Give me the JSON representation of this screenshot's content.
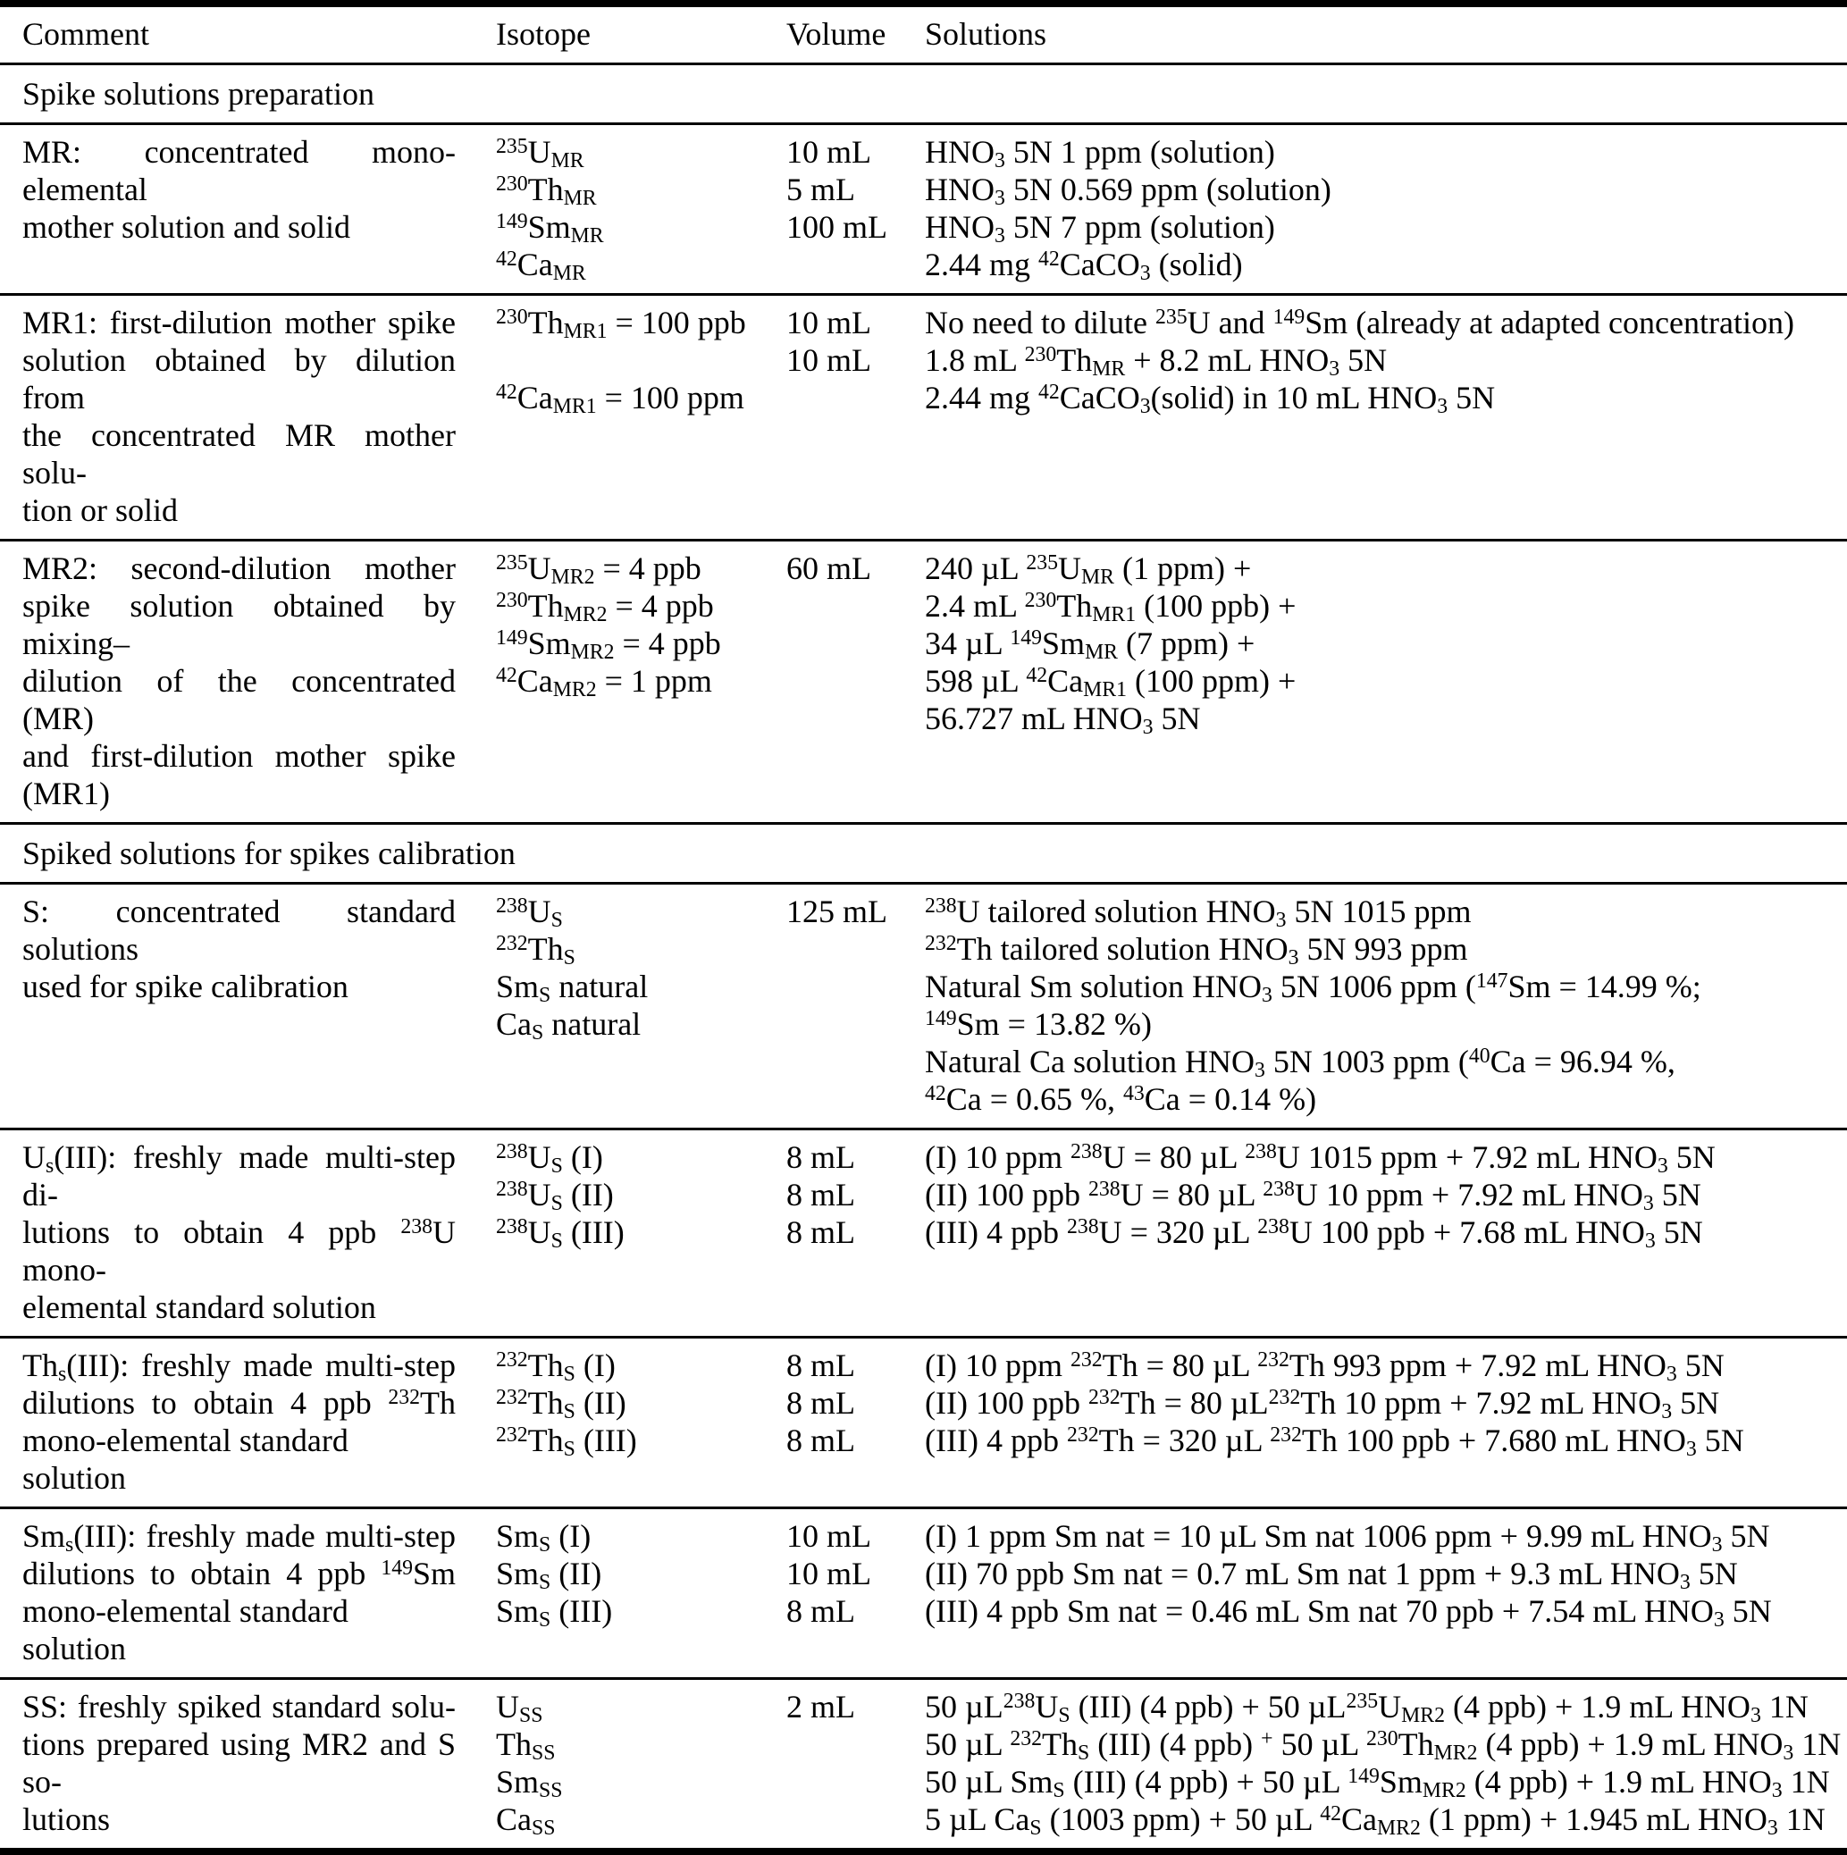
{
  "colors": {
    "text": "#000000",
    "background": "#ffffff",
    "rule": "#000000"
  },
  "table": {
    "columns": [
      "Comment",
      "Isotope",
      "Volume",
      "Solutions"
    ],
    "sections": [
      {
        "title": "Spike solutions preparation",
        "rows": [
          {
            "id": "MR",
            "comment_lines": [
              "MR: concentrated mono-elemental",
              "mother solution and solid"
            ],
            "isotope_lines": [
              "<sup>235</sup>U<sub>MR</sub>",
              "<sup>230</sup>Th<sub>MR</sub>",
              "<sup>149</sup>Sm<sub>MR</sub>",
              "<sup>42</sup>Ca<sub>MR</sub>"
            ],
            "volume_lines": [
              "10 mL",
              "5 mL",
              "100 mL"
            ],
            "solution_lines": [
              "HNO<sub>3</sub> 5N 1 ppm (solution)",
              "HNO<sub>3</sub> 5N 0.569 ppm (solution)",
              "HNO<sub>3</sub> 5N 7 ppm (solution)",
              "2.44 mg <sup>42</sup>CaCO<sub>3</sub> (solid)"
            ]
          },
          {
            "id": "MR1",
            "comment_lines": [
              "MR1: first-dilution mother spike",
              "solution obtained by dilution from",
              "the concentrated MR mother solu-",
              "tion or solid"
            ],
            "isotope_lines": [
              "<sup>230</sup>Th<sub>MR1</sub> = 100 ppb",
              "",
              "<sup>42</sup>Ca<sub>MR1</sub> = 100 ppm"
            ],
            "volume_lines": [
              "10 mL",
              "10 mL"
            ],
            "solution_lines": [
              "No need to dilute <sup>235</sup>U and <sup>149</sup>Sm (already at adapted concentration)",
              "1.8 mL <sup>230</sup>Th<sub>MR</sub> + 8.2 mL HNO<sub>3</sub> 5N",
              "2.44 mg <sup>42</sup>CaCO<sub>3</sub>(solid) in 10 mL HNO<sub>3</sub> 5N"
            ]
          },
          {
            "id": "MR2",
            "comment_lines": [
              "MR2: second-dilution mother",
              "spike solution obtained by mixing–",
              "dilution of the concentrated (MR)",
              "and first-dilution mother spike",
              "(MR1)"
            ],
            "isotope_lines": [
              "<sup>235</sup>U<sub>MR2</sub> = 4 ppb",
              "<sup>230</sup>Th<sub>MR2</sub> = 4 ppb",
              "<sup>149</sup>Sm<sub>MR2</sub> = 4 ppb",
              "<sup>42</sup>Ca<sub>MR2</sub> = 1 ppm"
            ],
            "volume_lines": [
              "60 mL"
            ],
            "solution_lines": [
              "240 µL <sup>235</sup>U<sub>MR</sub> (1 ppm) +",
              "2.4 mL <sup>230</sup>Th<sub>MR1</sub> (100 ppb) +",
              "34 µL <sup>149</sup>Sm<sub>MR</sub> (7 ppm) +",
              "598 µL <sup>42</sup>Ca<sub>MR1</sub> (100 ppm) +",
              "56.727 mL HNO<sub>3</sub> 5N"
            ]
          }
        ]
      },
      {
        "title": "Spiked solutions for spikes calibration",
        "rows": [
          {
            "id": "S",
            "comment_lines": [
              "S: concentrated standard solutions",
              "used for spike calibration"
            ],
            "isotope_lines": [
              "<sup>238</sup>U<sub>S</sub>",
              "<sup>232</sup>Th<sub>S</sub>",
              "Sm<sub>S</sub> natural",
              "Ca<sub>S</sub> natural"
            ],
            "volume_lines": [
              "125 mL"
            ],
            "solution_lines": [
              "<sup>238</sup>U tailored solution HNO<sub>3</sub> 5N 1015 ppm",
              "<sup>232</sup>Th tailored solution HNO<sub>3</sub> 5N 993 ppm",
              "Natural Sm solution HNO<sub>3</sub> 5N 1006 ppm (<sup>147</sup>Sm = 14.99 %;",
              "<sup>149</sup>Sm = 13.82 %)",
              "Natural Ca solution HNO<sub>3</sub> 5N 1003 ppm (<sup>40</sup>Ca = 96.94 %,",
              "<sup>42</sup>Ca = 0.65 %, <sup>43</sup>Ca = 0.14 %)"
            ]
          },
          {
            "id": "Us(III)",
            "comment_lines": [
              "U<sub>s</sub>(III): freshly made multi-step di-",
              "lutions to obtain 4 ppb <sup>238</sup>U mono-",
              "elemental standard solution"
            ],
            "isotope_lines": [
              "<sup>238</sup>U<sub>S</sub> (I)",
              "<sup>238</sup>U<sub>S</sub> (II)",
              "<sup>238</sup>U<sub>S</sub> (III)"
            ],
            "volume_lines": [
              "8 mL",
              "8 mL",
              "8 mL"
            ],
            "solution_lines": [
              "(I) 10 ppm <sup>238</sup>U = 80 µL <sup>238</sup>U 1015 ppm + 7.92 mL HNO<sub>3</sub> 5N",
              "(II) 100 ppb <sup>238</sup>U = 80 µL <sup>238</sup>U 10 ppm + 7.92 mL HNO<sub>3</sub> 5N",
              "(III) 4 ppb <sup>238</sup>U = 320 µL <sup>238</sup>U 100 ppb + 7.68 mL HNO<sub>3</sub> 5N"
            ]
          },
          {
            "id": "Ths(III)",
            "comment_lines": [
              "Th<sub>s</sub>(III): freshly made multi-step",
              "dilutions to obtain 4 ppb <sup>232</sup>Th",
              "mono-elemental standard solution"
            ],
            "isotope_lines": [
              "<sup>232</sup>Th<sub>S</sub> (I)",
              "<sup>232</sup>Th<sub>S</sub> (II)",
              "<sup>232</sup>Th<sub>S</sub> (III)"
            ],
            "volume_lines": [
              "8 mL",
              "8 mL",
              "8 mL"
            ],
            "solution_lines": [
              "(I) 10 ppm <sup>232</sup>Th = 80 µL <sup>232</sup>Th 993 ppm + 7.92 mL HNO<sub>3</sub> 5N",
              "(II) 100 ppb <sup>232</sup>Th = 80 µL<sup>232</sup>Th 10 ppm + 7.92 mL HNO<sub>3</sub> 5N",
              "(III) 4 ppb <sup>232</sup>Th = 320 µL <sup>232</sup>Th 100 ppb + 7.680 mL HNO<sub>3</sub> 5N"
            ]
          },
          {
            "id": "Sms(III)",
            "comment_lines": [
              "Sm<sub>s</sub>(III): freshly made multi-step",
              "dilutions to obtain 4 ppb <sup>149</sup>Sm",
              "mono-elemental standard solution"
            ],
            "isotope_lines": [
              "Sm<sub>S</sub> (I)",
              "Sm<sub>S</sub> (II)",
              "Sm<sub>S</sub> (III)"
            ],
            "volume_lines": [
              "10 mL",
              "10 mL",
              "8 mL"
            ],
            "solution_lines": [
              "(I) 1 ppm Sm nat = 10 µL Sm nat 1006 ppm + 9.99 mL HNO<sub>3</sub> 5N",
              "(II) 70 ppb Sm nat = 0.7 mL Sm nat 1 ppm + 9.3 mL HNO<sub>3</sub> 5N",
              "(III) 4 ppb Sm nat = 0.46 mL Sm nat 70 ppb + 7.54 mL HNO<sub>3</sub> 5N"
            ]
          },
          {
            "id": "SS",
            "comment_lines": [
              "SS: freshly spiked standard solu-",
              "tions prepared using MR2 and S so-",
              "lutions"
            ],
            "isotope_lines": [
              "U<sub>SS</sub>",
              "Th<sub>SS</sub>",
              "Sm<sub>SS</sub>",
              "Ca<sub>SS</sub>"
            ],
            "volume_lines": [
              "2 mL"
            ],
            "solution_lines": [
              "50 µL<sup>238</sup>U<sub>S</sub> (III) (4 ppb) + 50 µL<sup>235</sup>U<sub>MR2</sub> (4 ppb) + 1.9 mL HNO<sub>3</sub> 1N",
              "50 µL <sup>232</sup>Th<sub>S</sub> (III) (4 ppb) <sup>+</sup> 50 µL <sup>230</sup>Th<sub>MR2</sub> (4 ppb) + 1.9 mL HNO<sub>3</sub> 1N",
              "50 µL Sm<sub>S</sub> (III) (4 ppb) + 50 µL <sup>149</sup>Sm<sub>MR2</sub> (4 ppb) + 1.9 mL HNO<sub>3</sub> 1N",
              "5 µL Ca<sub>S</sub> (1003 ppm) + 50 µL <sup>42</sup>Ca<sub>MR2</sub> (1 ppm) + 1.945 mL HNO<sub>3</sub> 1N"
            ]
          }
        ]
      }
    ]
  }
}
